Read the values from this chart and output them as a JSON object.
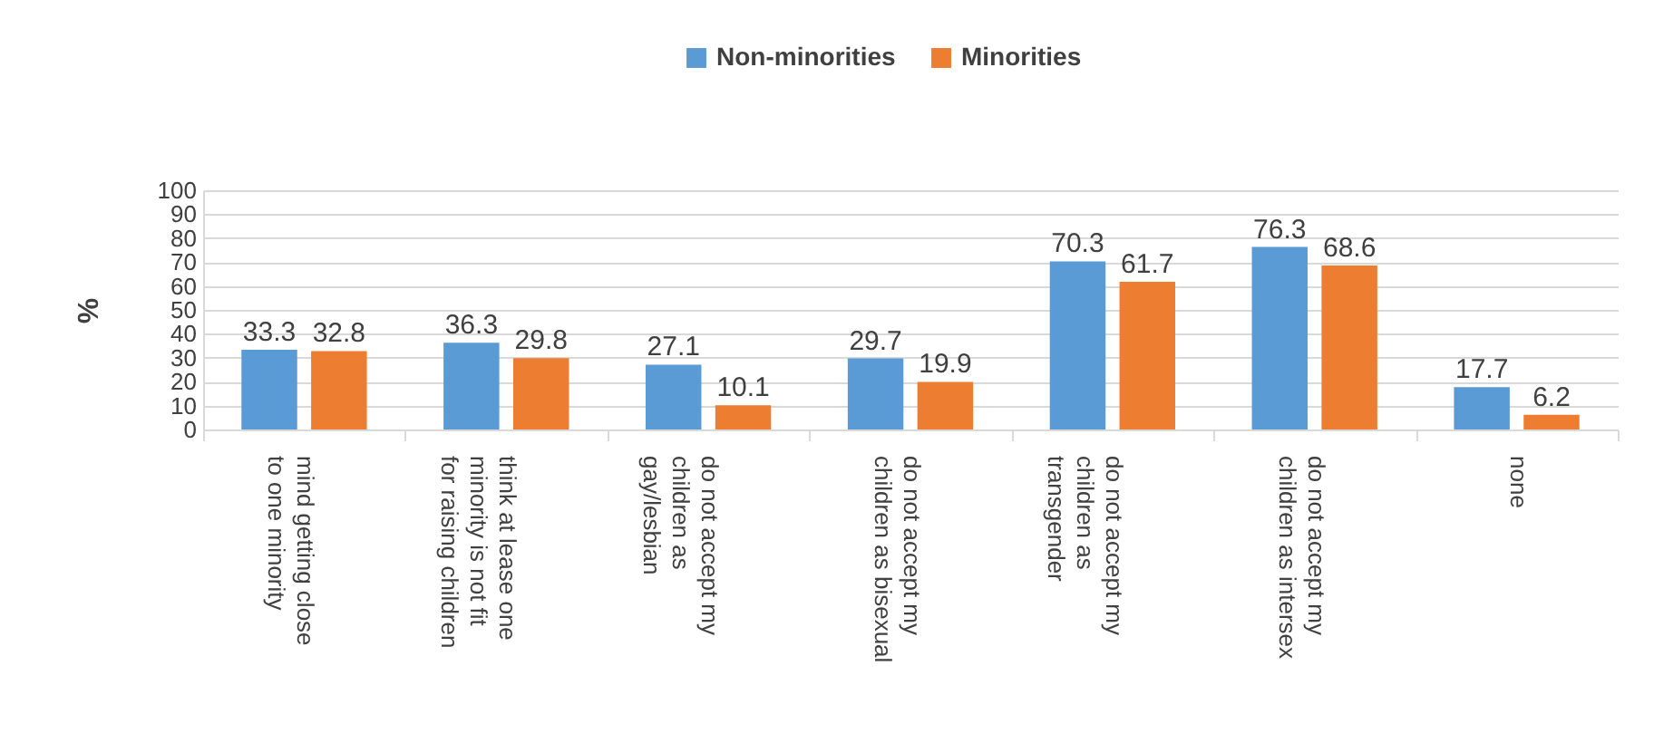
{
  "chart_data": {
    "type": "bar",
    "ylabel": "%",
    "categories": [
      "mind getting close to one minority",
      "think at lease one minority is not fit for raising children",
      "do not accept my children as gay/lesbian",
      "do not accept my children as bisexual",
      "do not accept my children as transgender",
      "do not accept my children as intersex",
      "none"
    ],
    "series": [
      {
        "name": "Non-minorities",
        "color": "#5b9bd5",
        "values": [
          33.3,
          36.3,
          27.1,
          29.7,
          70.3,
          76.3,
          17.7
        ]
      },
      {
        "name": "Minorities",
        "color": "#ed7d31",
        "values": [
          32.8,
          29.8,
          10.1,
          19.9,
          61.7,
          68.6,
          6.2
        ]
      }
    ],
    "ylim": [
      0,
      100
    ],
    "yticks": [
      0,
      10,
      20,
      30,
      40,
      50,
      60,
      70,
      80,
      90,
      100
    ],
    "grid": "y",
    "legend": "top",
    "data_labels": true
  }
}
